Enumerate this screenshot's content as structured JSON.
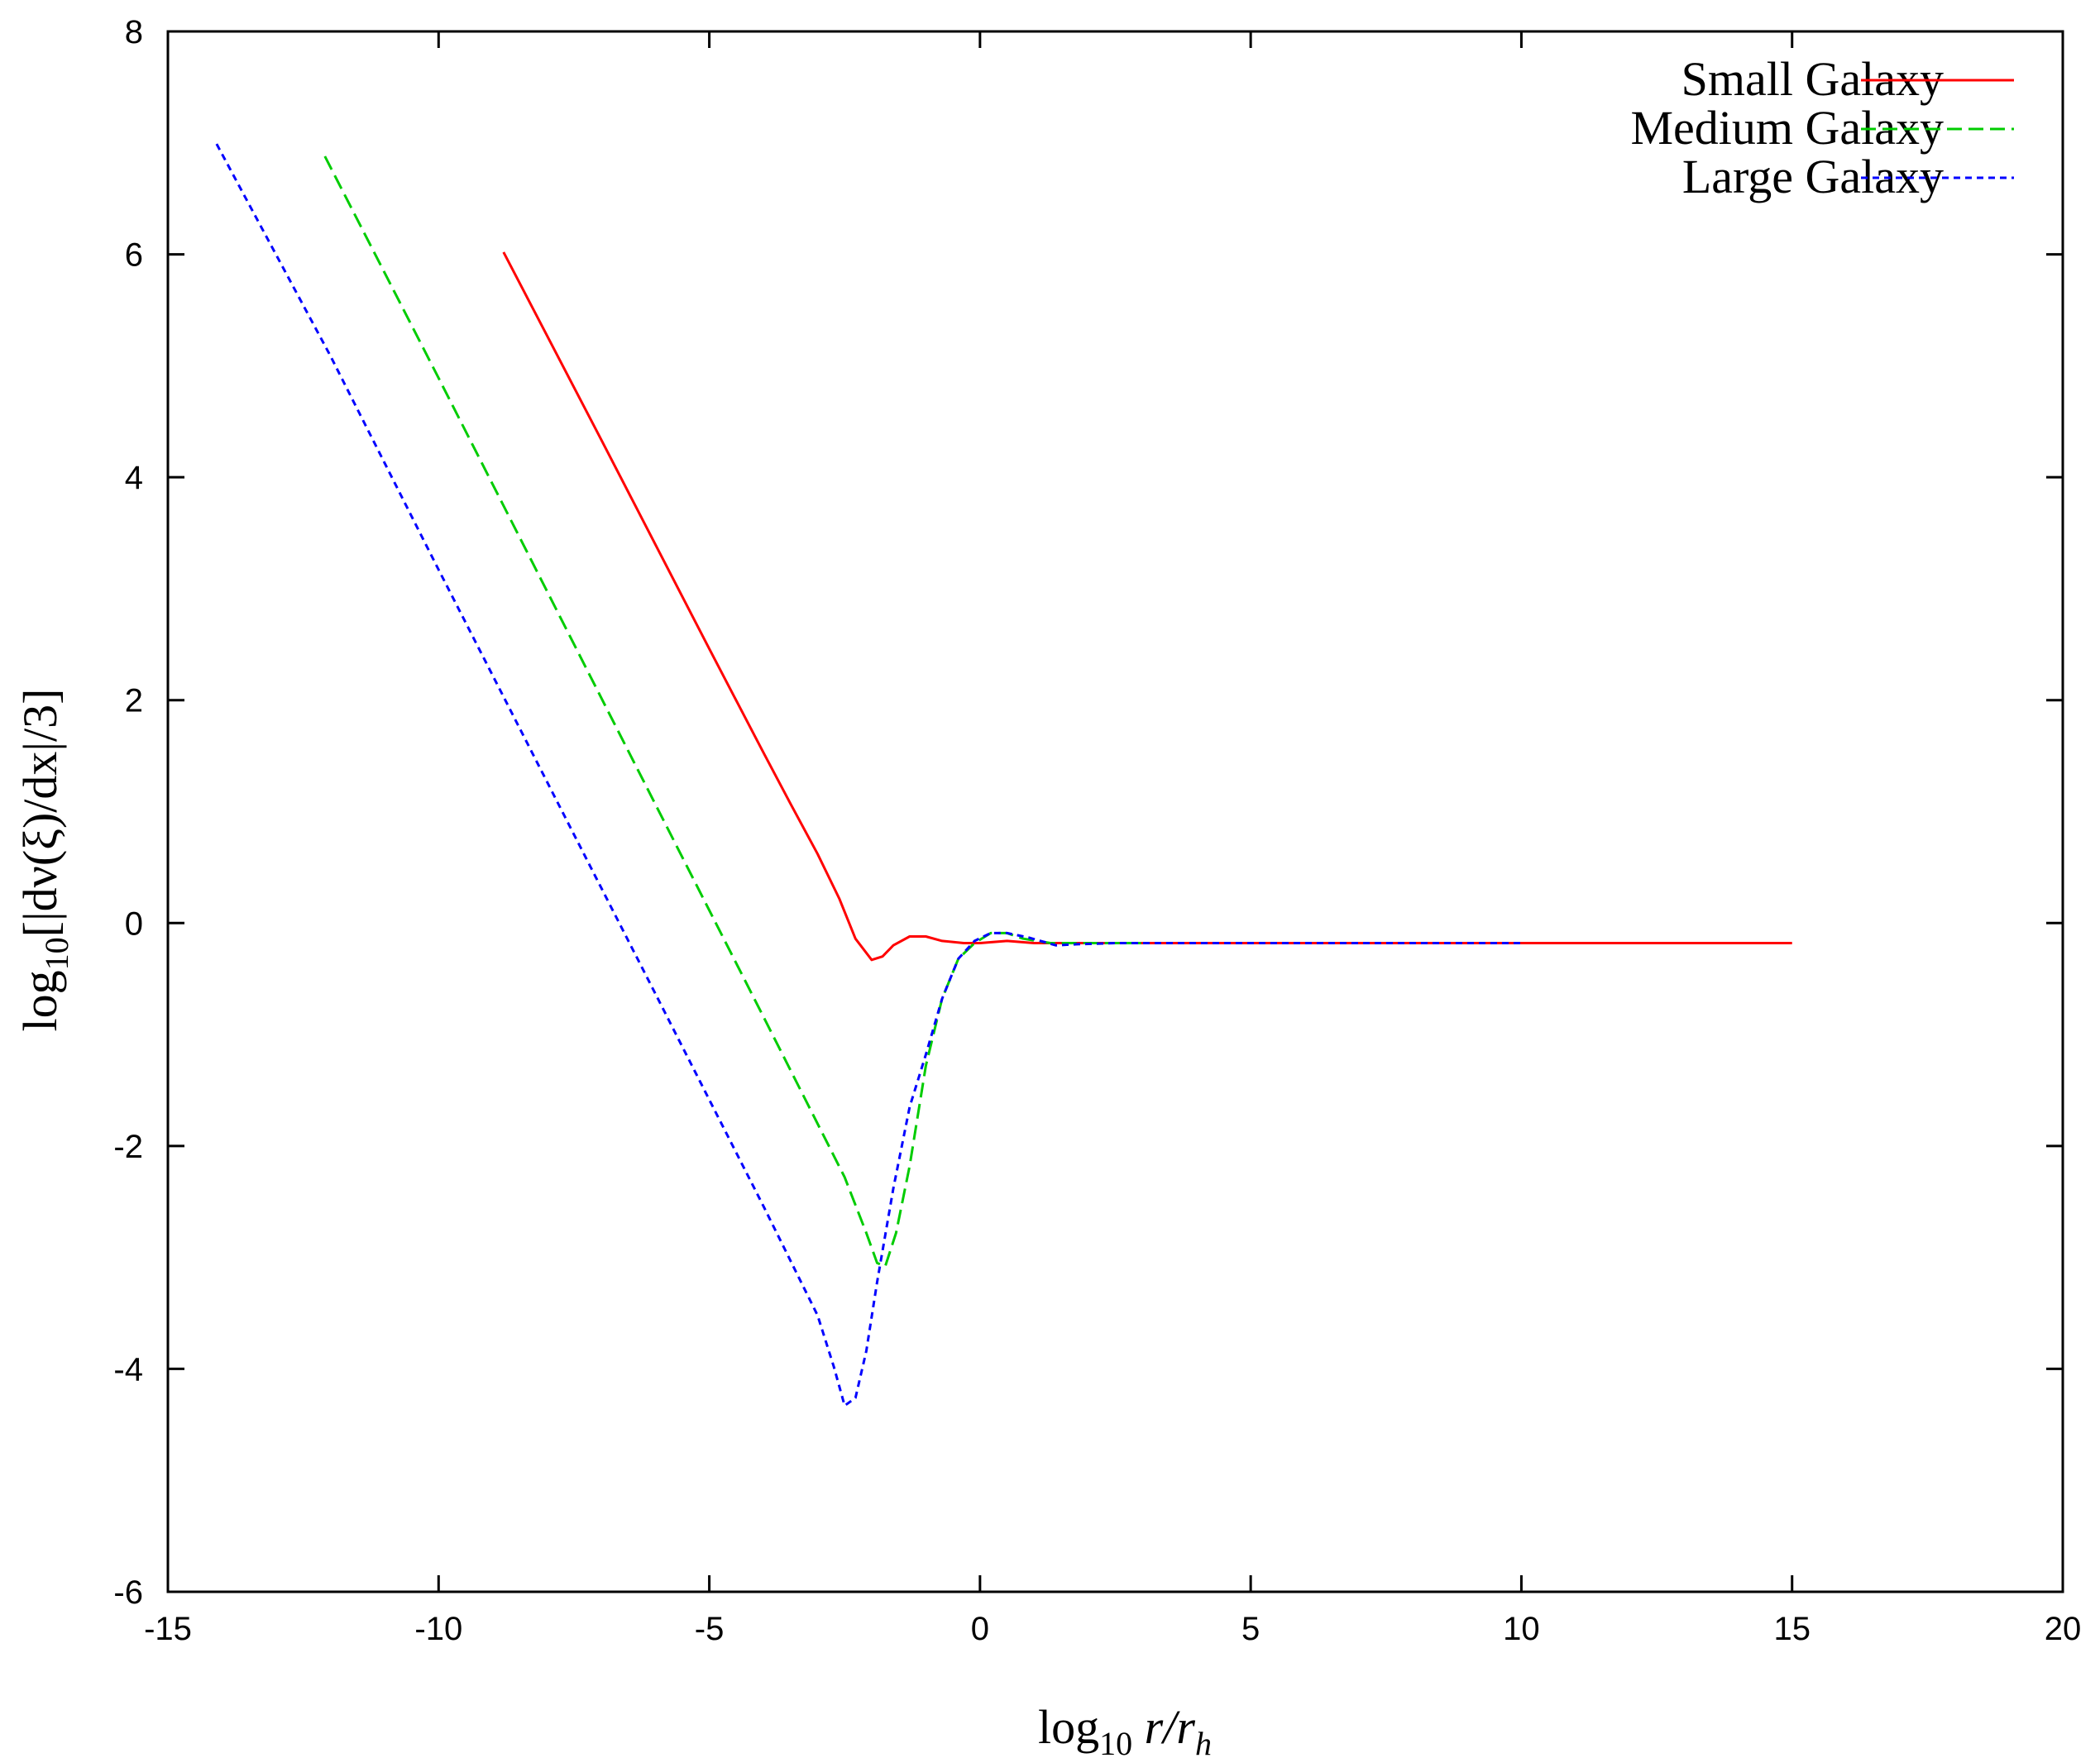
{
  "chart_data": {
    "type": "line",
    "xlabel": "log10 r/r_h",
    "ylabel": "log10[|dν(ξ)/dx|/3]",
    "xlim": [
      -15,
      20
    ],
    "ylim": [
      -6,
      8
    ],
    "xticks": [
      "-15",
      "-10",
      "-5",
      "0",
      "5",
      "10",
      "15",
      "20"
    ],
    "yticks": [
      "-6",
      "-4",
      "-2",
      "0",
      "2",
      "4",
      "6",
      "8"
    ],
    "grid": false,
    "legend_position": "top-right",
    "series": [
      {
        "name": "Small Galaxy",
        "color": "#ff0000",
        "style": "solid",
        "points": [
          [
            -8.8,
            6.02
          ],
          [
            -7,
            4.34
          ],
          [
            -5,
            2.46
          ],
          [
            -4,
            1.53
          ],
          [
            -3.5,
            1.07
          ],
          [
            -3,
            0.62
          ],
          [
            -2.6,
            0.22
          ],
          [
            -2.3,
            -0.14
          ],
          [
            -2.0,
            -0.33
          ],
          [
            -1.8,
            -0.3
          ],
          [
            -1.6,
            -0.2
          ],
          [
            -1.3,
            -0.12
          ],
          [
            -1.0,
            -0.12
          ],
          [
            -0.7,
            -0.16
          ],
          [
            -0.3,
            -0.18
          ],
          [
            0,
            -0.18
          ],
          [
            0.5,
            -0.16
          ],
          [
            1,
            -0.18
          ],
          [
            2,
            -0.18
          ],
          [
            5,
            -0.18
          ],
          [
            10,
            -0.18
          ],
          [
            15,
            -0.18
          ]
        ]
      },
      {
        "name": "Medium Galaxy",
        "color": "#00cc00",
        "style": "dashed",
        "points": [
          [
            -12.1,
            6.88
          ],
          [
            -10,
            4.89
          ],
          [
            -8,
            2.98
          ],
          [
            -6,
            1.07
          ],
          [
            -4,
            -0.84
          ],
          [
            -3,
            -1.8
          ],
          [
            -2.5,
            -2.28
          ],
          [
            -2.1,
            -2.78
          ],
          [
            -1.9,
            -3.05
          ],
          [
            -1.75,
            -3.08
          ],
          [
            -1.55,
            -2.78
          ],
          [
            -1.3,
            -2.18
          ],
          [
            -1.0,
            -1.28
          ],
          [
            -0.7,
            -0.68
          ],
          [
            -0.4,
            -0.32
          ],
          [
            -0.1,
            -0.18
          ],
          [
            0.2,
            -0.09
          ],
          [
            0.5,
            -0.09
          ],
          [
            0.8,
            -0.14
          ],
          [
            1.3,
            -0.18
          ],
          [
            2,
            -0.18
          ],
          [
            3,
            -0.18
          ]
        ]
      },
      {
        "name": "Large Galaxy",
        "color": "#0000ff",
        "style": "dotted",
        "points": [
          [
            -14.1,
            6.99
          ],
          [
            -12,
            5.09
          ],
          [
            -10,
            3.17
          ],
          [
            -8,
            1.27
          ],
          [
            -6,
            -0.63
          ],
          [
            -4,
            -2.54
          ],
          [
            -3,
            -3.52
          ],
          [
            -2.7,
            -3.98
          ],
          [
            -2.5,
            -4.33
          ],
          [
            -2.3,
            -4.26
          ],
          [
            -2.1,
            -3.84
          ],
          [
            -1.9,
            -3.22
          ],
          [
            -1.6,
            -2.38
          ],
          [
            -1.3,
            -1.65
          ],
          [
            -1.0,
            -1.18
          ],
          [
            -0.7,
            -0.68
          ],
          [
            -0.4,
            -0.32
          ],
          [
            -0.1,
            -0.16
          ],
          [
            0.2,
            -0.09
          ],
          [
            0.5,
            -0.09
          ],
          [
            0.9,
            -0.13
          ],
          [
            1.4,
            -0.2
          ],
          [
            1.8,
            -0.19
          ],
          [
            2.5,
            -0.18
          ],
          [
            5,
            -0.18
          ],
          [
            10,
            -0.18
          ]
        ]
      }
    ]
  }
}
